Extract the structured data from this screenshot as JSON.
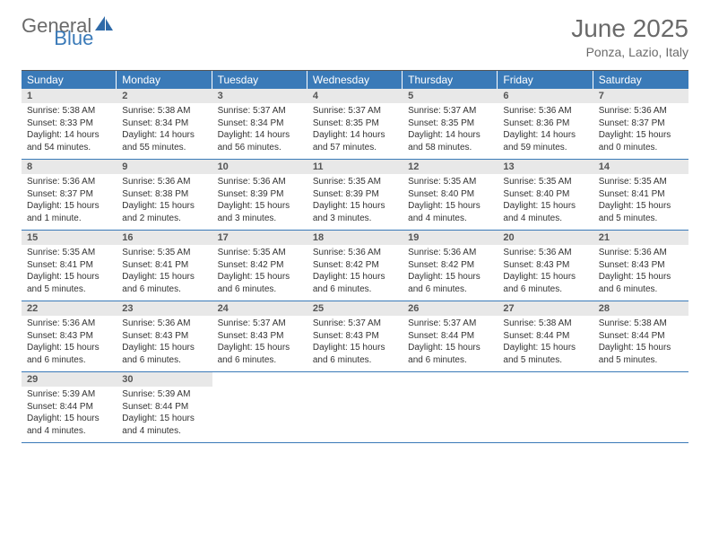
{
  "logo": {
    "general": "General",
    "blue": "Blue"
  },
  "title": "June 2025",
  "location": "Ponza, Lazio, Italy",
  "colors": {
    "header_bg": "#3a7ab8",
    "daynum_bg": "#e8e8e8",
    "text_muted": "#6a6a6a",
    "text_body": "#333333",
    "rule": "#3a7ab8"
  },
  "weekdays": [
    "Sunday",
    "Monday",
    "Tuesday",
    "Wednesday",
    "Thursday",
    "Friday",
    "Saturday"
  ],
  "labels": {
    "sunrise": "Sunrise:",
    "sunset": "Sunset:",
    "daylight": "Daylight:"
  },
  "weeks": [
    [
      {
        "n": "1",
        "sunrise": "5:38 AM",
        "sunset": "8:33 PM",
        "daylight": "14 hours and 54 minutes."
      },
      {
        "n": "2",
        "sunrise": "5:38 AM",
        "sunset": "8:34 PM",
        "daylight": "14 hours and 55 minutes."
      },
      {
        "n": "3",
        "sunrise": "5:37 AM",
        "sunset": "8:34 PM",
        "daylight": "14 hours and 56 minutes."
      },
      {
        "n": "4",
        "sunrise": "5:37 AM",
        "sunset": "8:35 PM",
        "daylight": "14 hours and 57 minutes."
      },
      {
        "n": "5",
        "sunrise": "5:37 AM",
        "sunset": "8:35 PM",
        "daylight": "14 hours and 58 minutes."
      },
      {
        "n": "6",
        "sunrise": "5:36 AM",
        "sunset": "8:36 PM",
        "daylight": "14 hours and 59 minutes."
      },
      {
        "n": "7",
        "sunrise": "5:36 AM",
        "sunset": "8:37 PM",
        "daylight": "15 hours and 0 minutes."
      }
    ],
    [
      {
        "n": "8",
        "sunrise": "5:36 AM",
        "sunset": "8:37 PM",
        "daylight": "15 hours and 1 minute."
      },
      {
        "n": "9",
        "sunrise": "5:36 AM",
        "sunset": "8:38 PM",
        "daylight": "15 hours and 2 minutes."
      },
      {
        "n": "10",
        "sunrise": "5:36 AM",
        "sunset": "8:39 PM",
        "daylight": "15 hours and 3 minutes."
      },
      {
        "n": "11",
        "sunrise": "5:35 AM",
        "sunset": "8:39 PM",
        "daylight": "15 hours and 3 minutes."
      },
      {
        "n": "12",
        "sunrise": "5:35 AM",
        "sunset": "8:40 PM",
        "daylight": "15 hours and 4 minutes."
      },
      {
        "n": "13",
        "sunrise": "5:35 AM",
        "sunset": "8:40 PM",
        "daylight": "15 hours and 4 minutes."
      },
      {
        "n": "14",
        "sunrise": "5:35 AM",
        "sunset": "8:41 PM",
        "daylight": "15 hours and 5 minutes."
      }
    ],
    [
      {
        "n": "15",
        "sunrise": "5:35 AM",
        "sunset": "8:41 PM",
        "daylight": "15 hours and 5 minutes."
      },
      {
        "n": "16",
        "sunrise": "5:35 AM",
        "sunset": "8:41 PM",
        "daylight": "15 hours and 6 minutes."
      },
      {
        "n": "17",
        "sunrise": "5:35 AM",
        "sunset": "8:42 PM",
        "daylight": "15 hours and 6 minutes."
      },
      {
        "n": "18",
        "sunrise": "5:36 AM",
        "sunset": "8:42 PM",
        "daylight": "15 hours and 6 minutes."
      },
      {
        "n": "19",
        "sunrise": "5:36 AM",
        "sunset": "8:42 PM",
        "daylight": "15 hours and 6 minutes."
      },
      {
        "n": "20",
        "sunrise": "5:36 AM",
        "sunset": "8:43 PM",
        "daylight": "15 hours and 6 minutes."
      },
      {
        "n": "21",
        "sunrise": "5:36 AM",
        "sunset": "8:43 PM",
        "daylight": "15 hours and 6 minutes."
      }
    ],
    [
      {
        "n": "22",
        "sunrise": "5:36 AM",
        "sunset": "8:43 PM",
        "daylight": "15 hours and 6 minutes."
      },
      {
        "n": "23",
        "sunrise": "5:36 AM",
        "sunset": "8:43 PM",
        "daylight": "15 hours and 6 minutes."
      },
      {
        "n": "24",
        "sunrise": "5:37 AM",
        "sunset": "8:43 PM",
        "daylight": "15 hours and 6 minutes."
      },
      {
        "n": "25",
        "sunrise": "5:37 AM",
        "sunset": "8:43 PM",
        "daylight": "15 hours and 6 minutes."
      },
      {
        "n": "26",
        "sunrise": "5:37 AM",
        "sunset": "8:44 PM",
        "daylight": "15 hours and 6 minutes."
      },
      {
        "n": "27",
        "sunrise": "5:38 AM",
        "sunset": "8:44 PM",
        "daylight": "15 hours and 5 minutes."
      },
      {
        "n": "28",
        "sunrise": "5:38 AM",
        "sunset": "8:44 PM",
        "daylight": "15 hours and 5 minutes."
      }
    ],
    [
      {
        "n": "29",
        "sunrise": "5:39 AM",
        "sunset": "8:44 PM",
        "daylight": "15 hours and 4 minutes."
      },
      {
        "n": "30",
        "sunrise": "5:39 AM",
        "sunset": "8:44 PM",
        "daylight": "15 hours and 4 minutes."
      },
      null,
      null,
      null,
      null,
      null
    ]
  ]
}
